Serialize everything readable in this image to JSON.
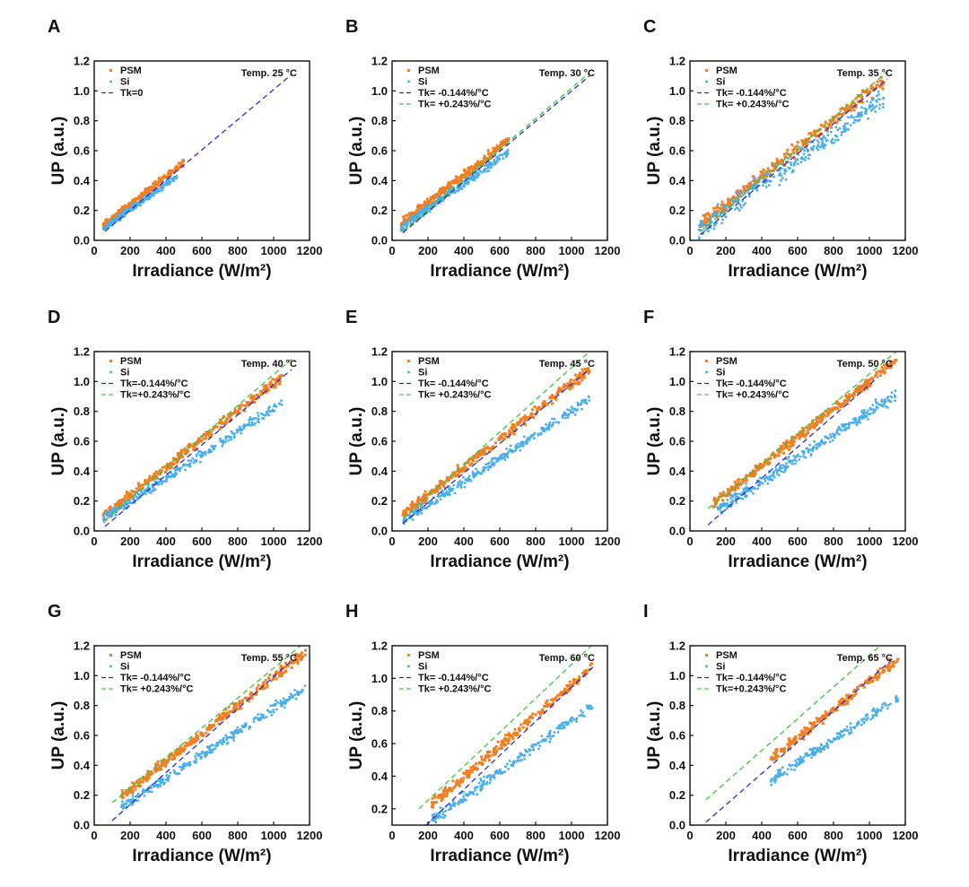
{
  "figure": {
    "colors": {
      "psm": "#F07F22",
      "si": "#4AAEEA",
      "tk_neg": "#2A2ACF",
      "tk_pos": "#36C93A",
      "tk0": "#2A2ACF"
    }
  },
  "chart_data": [
    {
      "panel": "A",
      "type": "scatter",
      "xlabel": "Irradiance (W/m²)",
      "ylabel": "UP (a.u.)",
      "annotation": "Temp. 25 °C",
      "xlim": [
        0,
        1200
      ],
      "ylim": [
        0,
        1.2
      ],
      "xticks": [
        0,
        200,
        400,
        600,
        800,
        1000,
        1200
      ],
      "yticks": [
        0.0,
        0.2,
        0.4,
        0.6,
        0.8,
        1.0,
        1.2
      ],
      "legend": [
        "PSM",
        "Si",
        "Tk=0"
      ],
      "series": [
        {
          "name": "PSM",
          "kind": "points",
          "x_range": [
            50,
            500
          ],
          "slope": 0.00094,
          "intercept": 0.05,
          "n": 260,
          "spread": 0.015
        },
        {
          "name": "Si",
          "kind": "points",
          "x_range": [
            50,
            460
          ],
          "slope": 0.00085,
          "intercept": 0.035,
          "n": 220,
          "spread": 0.012
        }
      ],
      "lines": [
        {
          "name": "Tk=0",
          "x": [
            60,
            1100
          ],
          "y": [
            0.06,
            1.11
          ]
        }
      ]
    },
    {
      "panel": "B",
      "type": "scatter",
      "xlabel": "Irradiance (W/m²)",
      "ylabel": "UP (a.u.)",
      "annotation": "Temp. 30 °C",
      "xlim": [
        0,
        1200
      ],
      "ylim": [
        0,
        1.2
      ],
      "xticks": [
        0,
        200,
        400,
        600,
        800,
        1000,
        1200
      ],
      "yticks": [
        0.0,
        0.2,
        0.4,
        0.6,
        0.8,
        1.0,
        1.2
      ],
      "legend": [
        "PSM",
        "Si",
        "Tk= -0.144%/°C",
        "Tk= +0.243%/°C"
      ],
      "series": [
        {
          "name": "PSM",
          "kind": "points",
          "x_range": [
            50,
            650
          ],
          "slope": 0.00094,
          "intercept": 0.06,
          "n": 300,
          "spread": 0.02
        },
        {
          "name": "Si",
          "kind": "points",
          "x_range": [
            50,
            650
          ],
          "slope": 0.00085,
          "intercept": 0.04,
          "n": 260,
          "spread": 0.015
        }
      ],
      "lines": [
        {
          "name": "Tk= -0.144%/°C",
          "x": [
            60,
            1100
          ],
          "y": [
            0.05,
            1.1
          ]
        },
        {
          "name": "Tk= +0.243%/°C",
          "x": [
            60,
            1100
          ],
          "y": [
            0.06,
            1.12
          ]
        }
      ]
    },
    {
      "panel": "C",
      "type": "scatter",
      "xlabel": "Irradiance (W/m²)",
      "ylabel": "UP (a.u.)",
      "annotation": "Temp. 35 °C",
      "xlim": [
        0,
        1200
      ],
      "ylim": [
        0,
        1.2
      ],
      "xticks": [
        0,
        200,
        400,
        600,
        800,
        1000,
        1200
      ],
      "yticks": [
        0.0,
        0.2,
        0.4,
        0.6,
        0.8,
        1.0,
        1.2
      ],
      "legend": [
        "PSM",
        "Si",
        "Tk= -0.144%/°C",
        "Tk= +0.243%/°C"
      ],
      "series": [
        {
          "name": "PSM",
          "kind": "points",
          "x_range": [
            50,
            1080
          ],
          "slope": 0.00094,
          "intercept": 0.05,
          "n": 320,
          "spread": 0.025
        },
        {
          "name": "Si",
          "kind": "points",
          "x_range": [
            50,
            1080
          ],
          "slope": 0.00085,
          "intercept": 0.03,
          "n": 300,
          "spread": 0.04
        }
      ],
      "lines": [
        {
          "name": "Tk= -0.144%/°C",
          "x": [
            60,
            1100
          ],
          "y": [
            0.04,
            1.08
          ]
        },
        {
          "name": "Tk= +0.243%/°C",
          "x": [
            60,
            1100
          ],
          "y": [
            0.06,
            1.13
          ]
        }
      ]
    },
    {
      "panel": "D",
      "type": "scatter",
      "xlabel": "Irradiance (W/m²)",
      "ylabel": "UP (a.u.)",
      "annotation": "Temp. 40 °C",
      "xlim": [
        0,
        1200
      ],
      "ylim": [
        0,
        1.2
      ],
      "xticks": [
        0,
        200,
        400,
        600,
        800,
        1000,
        1200
      ],
      "yticks": [
        0.0,
        0.2,
        0.4,
        0.6,
        0.8,
        1.0,
        1.2
      ],
      "legend": [
        "PSM",
        "Si",
        "Tk=-0.144%/°C",
        "Tk=+0.243%/°C"
      ],
      "series": [
        {
          "name": "PSM",
          "kind": "points",
          "x_range": [
            50,
            1050
          ],
          "slope": 0.00094,
          "intercept": 0.05,
          "n": 320,
          "spread": 0.02
        },
        {
          "name": "Si",
          "kind": "points",
          "x_range": [
            50,
            1050
          ],
          "slope": 0.00078,
          "intercept": 0.04,
          "n": 300,
          "spread": 0.02
        }
      ],
      "lines": [
        {
          "name": "Tk=-0.144%/°C",
          "x": [
            60,
            1100
          ],
          "y": [
            0.03,
            1.08
          ]
        },
        {
          "name": "Tk=+0.243%/°C",
          "x": [
            60,
            1100
          ],
          "y": [
            0.07,
            1.15
          ]
        }
      ]
    },
    {
      "panel": "E",
      "type": "scatter",
      "xlabel": "Irradiance (W/m²)",
      "ylabel": "UP (a.u.)",
      "annotation": "Temp. 45 °C",
      "xlim": [
        0,
        1200
      ],
      "ylim": [
        0,
        1.2
      ],
      "xticks": [
        0,
        200,
        400,
        600,
        800,
        1000,
        1200
      ],
      "yticks": [
        0.0,
        0.2,
        0.4,
        0.6,
        0.8,
        1.0,
        1.2
      ],
      "legend": [
        "PSM",
        "Si",
        "Tk= -0.144%/°C",
        "Tk= +0.243%/°C"
      ],
      "series": [
        {
          "name": "PSM",
          "kind": "points",
          "x_range": [
            60,
            1100
          ],
          "slope": 0.00094,
          "intercept": 0.05,
          "n": 340,
          "spread": 0.02
        },
        {
          "name": "Si",
          "kind": "points",
          "x_range": [
            60,
            1100
          ],
          "slope": 0.00078,
          "intercept": 0.02,
          "n": 320,
          "spread": 0.02
        }
      ],
      "lines": [
        {
          "name": "Tk= -0.144%/°C",
          "x": [
            60,
            1100
          ],
          "y": [
            0.05,
            1.08
          ]
        },
        {
          "name": "Tk= +0.243%/°C",
          "x": [
            60,
            1100
          ],
          "y": [
            0.08,
            1.2
          ]
        }
      ]
    },
    {
      "panel": "F",
      "type": "scatter",
      "xlabel": "Irradiance (W/m²)",
      "ylabel": "UP (a.u.)",
      "annotation": "Temp. 50 °C",
      "xlim": [
        0,
        1200
      ],
      "ylim": [
        0,
        1.2
      ],
      "xticks": [
        0,
        200,
        400,
        600,
        800,
        1000,
        1200
      ],
      "yticks": [
        0.0,
        0.2,
        0.4,
        0.6,
        0.8,
        1.0,
        1.2
      ],
      "legend": [
        "PSM",
        "Si",
        "Tk= -0.144%/°C",
        "Tk= +0.243%/°C"
      ],
      "series": [
        {
          "name": "PSM",
          "kind": "points",
          "x_range": [
            120,
            1150
          ],
          "slope": 0.00094,
          "intercept": 0.06,
          "n": 340,
          "spread": 0.02
        },
        {
          "name": "Si",
          "kind": "points",
          "x_range": [
            150,
            1150
          ],
          "slope": 0.00078,
          "intercept": 0.02,
          "n": 320,
          "spread": 0.025
        }
      ],
      "lines": [
        {
          "name": "Tk= -0.144%/°C",
          "x": [
            100,
            1050
          ],
          "y": [
            0.04,
            1.03
          ]
        },
        {
          "name": "Tk= +0.243%/°C",
          "x": [
            100,
            1150
          ],
          "y": [
            0.15,
            1.2
          ]
        }
      ]
    },
    {
      "panel": "G",
      "type": "scatter",
      "xlabel": "Irradiance (W/m²)",
      "ylabel": "UP (a.u.)",
      "annotation": "Temp. 55 °C",
      "xlim": [
        0,
        1200
      ],
      "ylim": [
        0,
        1.2
      ],
      "xticks": [
        0,
        200,
        400,
        600,
        800,
        1000,
        1200
      ],
      "yticks": [
        0.0,
        0.2,
        0.4,
        0.6,
        0.8,
        1.0,
        1.2
      ],
      "legend": [
        "PSM",
        "Si",
        "Tk= -0.144%/°C",
        "Tk= +0.243%/°C"
      ],
      "series": [
        {
          "name": "PSM",
          "kind": "points",
          "x_range": [
            150,
            1180
          ],
          "slope": 0.00094,
          "intercept": 0.05,
          "n": 320,
          "spread": 0.02
        },
        {
          "name": "Si",
          "kind": "points",
          "x_range": [
            150,
            1180
          ],
          "slope": 0.00078,
          "intercept": 0.0,
          "n": 300,
          "spread": 0.02
        }
      ],
      "lines": [
        {
          "name": "Tk= -0.144%/°C",
          "x": [
            100,
            1100
          ],
          "y": [
            0.03,
            1.1
          ]
        },
        {
          "name": "Tk= +0.243%/°C",
          "x": [
            100,
            1150
          ],
          "y": [
            0.15,
            1.2
          ]
        }
      ]
    },
    {
      "panel": "H",
      "type": "scatter",
      "xlabel": "Irradiance (W/m²)",
      "ylabel": "UP (a.u.)",
      "annotation": "Temp. 60 °C",
      "xlim": [
        0,
        1200
      ],
      "ylim": [
        0.1,
        1.2
      ],
      "xticks": [
        0,
        200,
        400,
        600,
        800,
        1000,
        1200
      ],
      "yticks": [
        0.2,
        0.4,
        0.6,
        0.8,
        1.0,
        1.2
      ],
      "legend": [
        "PSM",
        "Si",
        "Tk= -0.144%/°C",
        "Tk= +0.243%/°C"
      ],
      "series": [
        {
          "name": "PSM",
          "kind": "points",
          "x_range": [
            220,
            1120
          ],
          "slope": 0.00094,
          "intercept": 0.02,
          "n": 260,
          "spread": 0.02
        },
        {
          "name": "Si",
          "kind": "points",
          "x_range": [
            220,
            1120
          ],
          "slope": 0.00078,
          "intercept": -0.04,
          "n": 240,
          "spread": 0.02
        }
      ],
      "lines": [
        {
          "name": "Tk= -0.144%/°C",
          "x": [
            190,
            1120
          ],
          "y": [
            0.1,
            1.07
          ]
        },
        {
          "name": "Tk= +0.243%/°C",
          "x": [
            150,
            1110
          ],
          "y": [
            0.2,
            1.2
          ]
        }
      ]
    },
    {
      "panel": "I",
      "type": "scatter",
      "xlabel": "Irradiance (W/m²)",
      "ylabel": "UP (a.u.)",
      "annotation": "Temp. 65 °C",
      "xlim": [
        0,
        1200
      ],
      "ylim": [
        0,
        1.2
      ],
      "xticks": [
        0,
        200,
        400,
        600,
        800,
        1000,
        1200
      ],
      "yticks": [
        0.0,
        0.2,
        0.4,
        0.6,
        0.8,
        1.0,
        1.2
      ],
      "legend": [
        "PSM",
        "Si",
        "Tk= -0.144%/°C",
        "Tk=+0.243%/°C"
      ],
      "series": [
        {
          "name": "PSM",
          "kind": "points",
          "x_range": [
            450,
            1160
          ],
          "slope": 0.00094,
          "intercept": 0.02,
          "n": 220,
          "spread": 0.02
        },
        {
          "name": "Si",
          "kind": "points",
          "x_range": [
            450,
            1160
          ],
          "slope": 0.00078,
          "intercept": -0.05,
          "n": 200,
          "spread": 0.02
        }
      ],
      "lines": [
        {
          "name": "Tk= -0.144%/°C",
          "x": [
            90,
            1120
          ],
          "y": [
            0.02,
            1.1
          ]
        },
        {
          "name": "Tk=+0.243%/°C",
          "x": [
            90,
            1060
          ],
          "y": [
            0.17,
            1.2
          ]
        }
      ]
    }
  ]
}
